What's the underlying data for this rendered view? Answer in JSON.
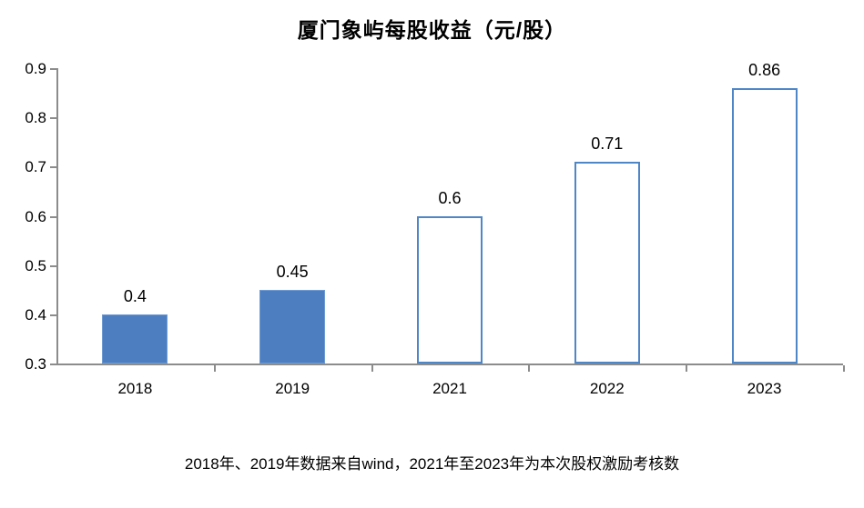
{
  "title": "厦门象屿每股收益（元/股）",
  "footnote": "2018年、2019年数据来自wind，2021年至2023年为本次股权激励考核数",
  "colors": {
    "bar_solid_fill": "#4d7ebf",
    "bar_solid_border": "#6e9ad3",
    "bar_hollow_fill": "#ffffff",
    "bar_hollow_border": "#4f86c6",
    "axis": "#8c8c8c",
    "text": "#000000"
  },
  "chart_data": {
    "type": "bar",
    "title": "厦门象屿每股收益（元/股）",
    "categories": [
      "2018",
      "2019",
      "2021",
      "2022",
      "2023"
    ],
    "values": [
      0.4,
      0.45,
      0.6,
      0.71,
      0.86
    ],
    "value_labels": [
      "0.4",
      "0.45",
      "0.6",
      "0.71",
      "0.86"
    ],
    "bar_styles": [
      "solid",
      "solid",
      "hollow",
      "hollow",
      "hollow"
    ],
    "xlabel": "",
    "ylabel": "",
    "ylim": [
      0.3,
      0.9
    ],
    "ytick_interval": 0.1,
    "ytick_labels": [
      "0.3",
      "0.4",
      "0.5",
      "0.6",
      "0.7",
      "0.8",
      "0.9"
    ],
    "grid": false,
    "legend": false,
    "data_labels": true,
    "annotation": "2018年、2019年数据来自wind，2021年至2023年为本次股权激励考核数"
  }
}
